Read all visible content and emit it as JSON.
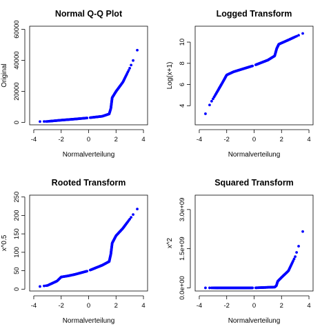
{
  "chart_data": [
    {
      "type": "scatter",
      "title": "Normal Q-Q Plot",
      "xlabel": "Normalverteilung",
      "ylabel": "Original",
      "xlim": [
        -4.3,
        4.3
      ],
      "ylim": [
        -1500,
        62000
      ],
      "xticks": [
        -4,
        -2,
        0,
        2,
        4
      ],
      "xtick_labels": [
        "-4",
        "-2",
        "0",
        "2",
        "4"
      ],
      "yticks": [
        0,
        20000,
        40000,
        60000
      ],
      "ytick_labels": [
        "0",
        "20000",
        "40000",
        "60000"
      ],
      "color": "#0000ff",
      "curve": [
        [
          -4,
          500
        ],
        [
          -3,
          700
        ],
        [
          -2,
          1500
        ],
        [
          -1,
          2200
        ],
        [
          0,
          3000
        ],
        [
          1,
          4000
        ],
        [
          1.5,
          5500
        ],
        [
          1.62,
          9000
        ],
        [
          1.72,
          16000
        ],
        [
          2,
          20000
        ],
        [
          2.5,
          26000
        ],
        [
          3,
          35000
        ],
        [
          3.5,
          45000
        ],
        [
          3.8,
          55000
        ],
        [
          4.05,
          58000
        ]
      ]
    },
    {
      "type": "scatter",
      "title": "Logged Transform",
      "xlabel": "Normalverteilung",
      "ylabel": "Log(x+1)",
      "xlim": [
        -4.3,
        4.3
      ],
      "ylim": [
        2.2,
        11.5
      ],
      "xticks": [
        -4,
        -2,
        0,
        2,
        4
      ],
      "xtick_labels": [
        "-4",
        "-2",
        "0",
        "2",
        "4"
      ],
      "yticks": [
        4,
        6,
        8,
        10
      ],
      "ytick_labels": [
        "4",
        "6",
        "8",
        "10"
      ],
      "color": "#0000ff",
      "curve": [
        [
          -4,
          2.6
        ],
        [
          -3.6,
          3.1
        ],
        [
          -3.2,
          4.2
        ],
        [
          -2.7,
          5.3
        ],
        [
          -2.3,
          6.2
        ],
        [
          -2,
          6.9
        ],
        [
          -1.5,
          7.2
        ],
        [
          -1,
          7.4
        ],
        [
          0,
          7.8
        ],
        [
          1,
          8.3
        ],
        [
          1.5,
          8.7
        ],
        [
          1.65,
          9.4
        ],
        [
          1.8,
          9.8
        ],
        [
          2.5,
          10.2
        ],
        [
          3,
          10.5
        ],
        [
          3.5,
          10.8
        ],
        [
          4.05,
          11
        ]
      ]
    },
    {
      "type": "scatter",
      "title": "Rooted Transform",
      "xlabel": "Normalverteilung",
      "ylabel": "x^0.5",
      "xlim": [
        -4.3,
        4.3
      ],
      "ylim": [
        -5,
        255
      ],
      "xticks": [
        -4,
        -2,
        0,
        2,
        4
      ],
      "xtick_labels": [
        "-4",
        "-2",
        "0",
        "2",
        "4"
      ],
      "yticks": [
        0,
        50,
        100,
        150,
        200,
        250
      ],
      "ytick_labels": [
        "0",
        "50",
        "100",
        "150",
        "200",
        "250"
      ],
      "color": "#0000ff",
      "curve": [
        [
          -4,
          5
        ],
        [
          -3,
          10
        ],
        [
          -2.3,
          22
        ],
        [
          -2,
          33
        ],
        [
          -1.5,
          36
        ],
        [
          -1,
          40
        ],
        [
          0,
          50
        ],
        [
          1,
          65
        ],
        [
          1.5,
          75
        ],
        [
          1.62,
          95
        ],
        [
          1.72,
          125
        ],
        [
          2,
          145
        ],
        [
          2.5,
          165
        ],
        [
          3,
          190
        ],
        [
          3.5,
          215
        ],
        [
          4.05,
          243
        ]
      ]
    },
    {
      "type": "scatter",
      "title": "Squared Transform",
      "xlabel": "Normalverteilung",
      "ylabel": "x^2",
      "xlim": [
        -4.3,
        4.3
      ],
      "ylim": [
        -120000000.0,
        3550000000.0
      ],
      "xticks": [
        -4,
        -2,
        0,
        2,
        4
      ],
      "xtick_labels": [
        "-4",
        "-2",
        "0",
        "2",
        "4"
      ],
      "yticks": [
        0,
        1500000000.0,
        3000000000.0
      ],
      "ytick_labels": [
        "0.0e+00",
        "1.5e+09",
        "3.0e+09"
      ],
      "color": "#0000ff",
      "curve": [
        [
          -4,
          0
        ],
        [
          0,
          0
        ],
        [
          1.5,
          30000000.0
        ],
        [
          1.62,
          80000000.0
        ],
        [
          1.72,
          250000000.0
        ],
        [
          2,
          400000000.0
        ],
        [
          2.5,
          650000000.0
        ],
        [
          3,
          1200000000.0
        ],
        [
          3.5,
          2000000000.0
        ],
        [
          3.8,
          3000000000.0
        ],
        [
          4.05,
          3400000000.0
        ]
      ]
    }
  ]
}
